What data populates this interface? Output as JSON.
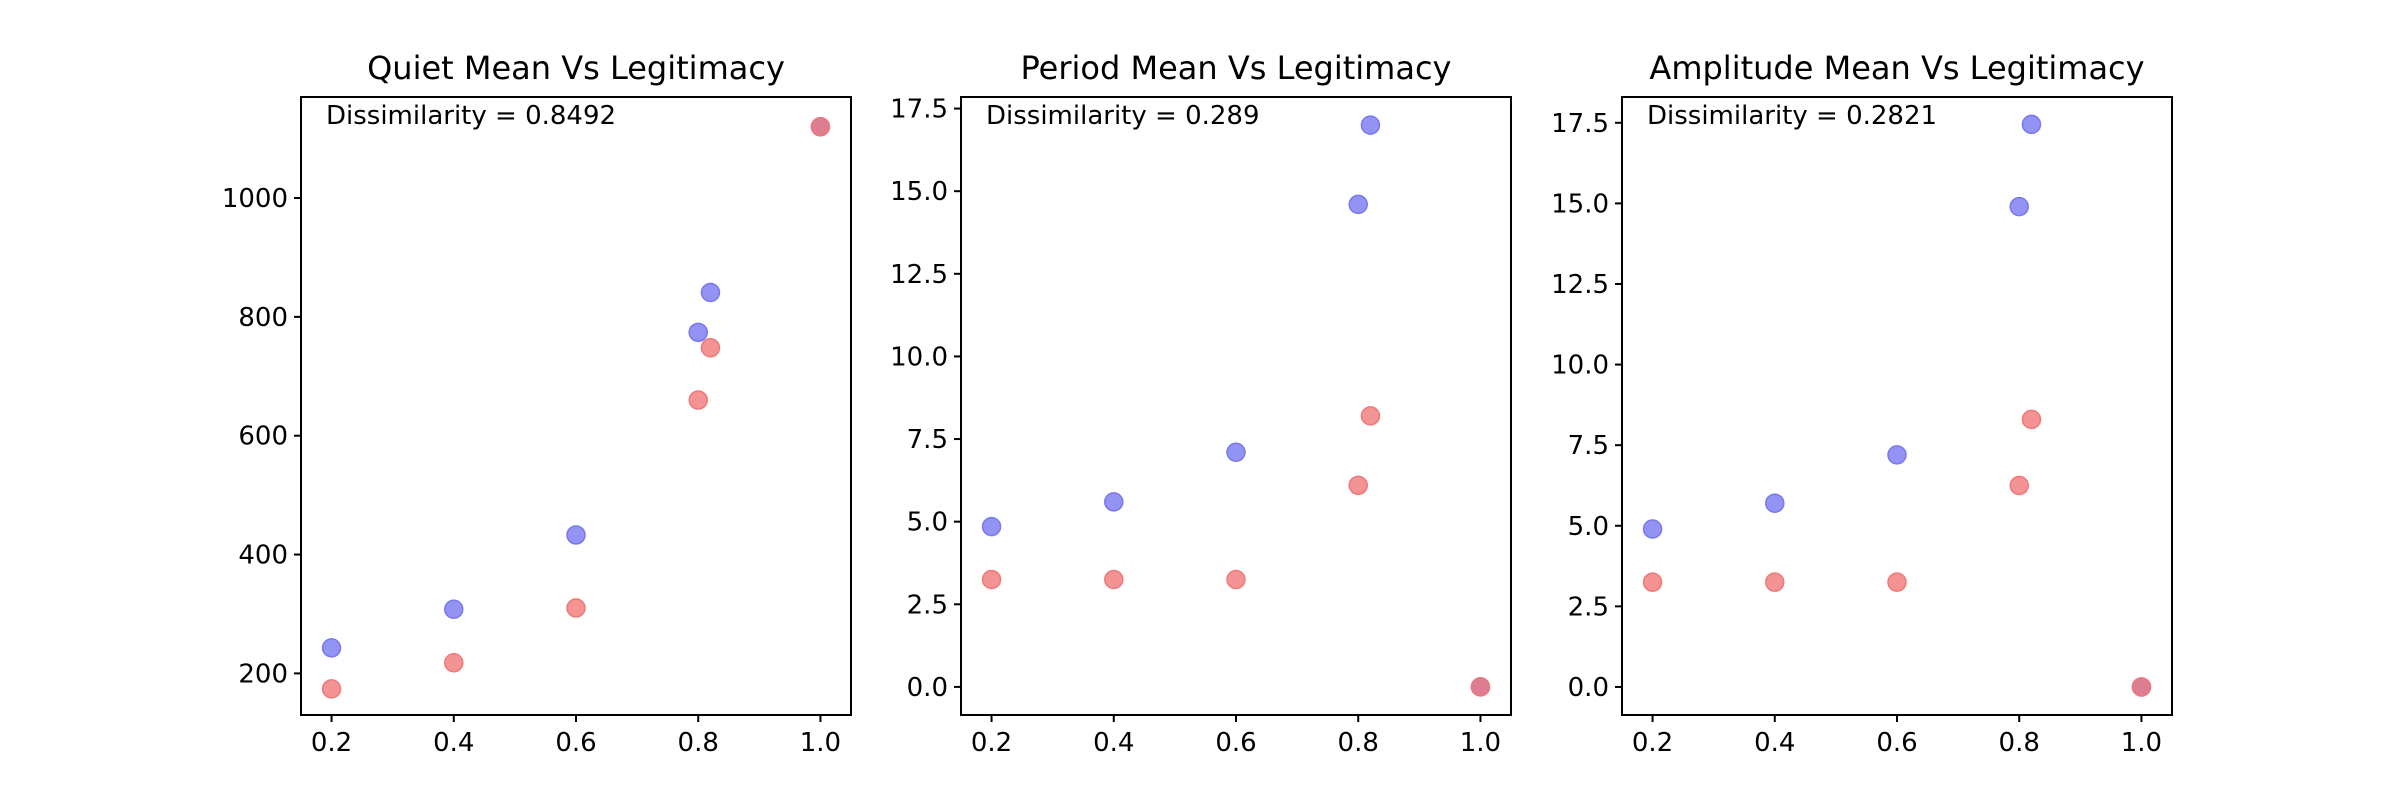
{
  "chart_data": [
    {
      "type": "scatter",
      "title": "Quiet Mean Vs Legitimacy",
      "xlabel": "",
      "ylabel": "",
      "annotation": "Dissimilarity = 0.8492",
      "xlim": [
        0.15,
        1.05
      ],
      "ylim": [
        130,
        1170
      ],
      "xticks": [
        0.2,
        0.4,
        0.6,
        0.8,
        1.0
      ],
      "xtick_labels": [
        "0.2",
        "0.4",
        "0.6",
        "0.8",
        "1.0"
      ],
      "yticks": [
        200,
        400,
        600,
        800,
        1000
      ],
      "ytick_labels": [
        "200",
        "400",
        "600",
        "800",
        "1000"
      ],
      "grid": false,
      "series": [
        {
          "color": "#7878f0",
          "points": [
            [
              0.2,
              243
            ],
            [
              0.4,
              308
            ],
            [
              0.6,
              433
            ],
            [
              0.8,
              774
            ],
            [
              0.82,
              841
            ],
            [
              1.0,
              1120
            ]
          ]
        },
        {
          "color": "#f07878",
          "points": [
            [
              0.2,
              174
            ],
            [
              0.4,
              218
            ],
            [
              0.6,
              310
            ],
            [
              0.8,
              660
            ],
            [
              0.82,
              748
            ],
            [
              1.0,
              1120
            ]
          ]
        }
      ]
    },
    {
      "type": "scatter",
      "title": "Period Mean Vs Legitimacy",
      "xlabel": "",
      "ylabel": "",
      "annotation": "Dissimilarity = 0.289",
      "xlim": [
        0.15,
        1.05
      ],
      "ylim": [
        -0.85,
        17.85
      ],
      "xticks": [
        0.2,
        0.4,
        0.6,
        0.8,
        1.0
      ],
      "xtick_labels": [
        "0.2",
        "0.4",
        "0.6",
        "0.8",
        "1.0"
      ],
      "yticks": [
        0.0,
        2.5,
        5.0,
        7.5,
        10.0,
        12.5,
        15.0,
        17.5
      ],
      "ytick_labels": [
        "0.0",
        "2.5",
        "5.0",
        "7.5",
        "10.0",
        "12.5",
        "15.0",
        "17.5"
      ],
      "grid": false,
      "series": [
        {
          "color": "#7878f0",
          "points": [
            [
              0.2,
              4.85
            ],
            [
              0.4,
              5.6
            ],
            [
              0.6,
              7.1
            ],
            [
              0.8,
              14.6
            ],
            [
              0.82,
              17.0
            ],
            [
              1.0,
              0.0
            ]
          ]
        },
        {
          "color": "#f07878",
          "points": [
            [
              0.2,
              3.25
            ],
            [
              0.4,
              3.25
            ],
            [
              0.6,
              3.25
            ],
            [
              0.8,
              6.1
            ],
            [
              0.82,
              8.2
            ],
            [
              1.0,
              0.0
            ]
          ]
        }
      ]
    },
    {
      "type": "scatter",
      "title": "Amplitude Mean Vs Legitimacy",
      "xlabel": "",
      "ylabel": "",
      "annotation": "Dissimilarity = 0.2821",
      "xlim": [
        0.15,
        1.05
      ],
      "ylim": [
        -0.87,
        18.3
      ],
      "xticks": [
        0.2,
        0.4,
        0.6,
        0.8,
        1.0
      ],
      "xtick_labels": [
        "0.2",
        "0.4",
        "0.6",
        "0.8",
        "1.0"
      ],
      "yticks": [
        0.0,
        2.5,
        5.0,
        7.5,
        10.0,
        12.5,
        15.0,
        17.5
      ],
      "ytick_labels": [
        "0.0",
        "2.5",
        "5.0",
        "7.5",
        "10.0",
        "12.5",
        "15.0",
        "17.5"
      ],
      "grid": false,
      "series": [
        {
          "color": "#7878f0",
          "points": [
            [
              0.2,
              4.9
            ],
            [
              0.4,
              5.7
            ],
            [
              0.6,
              7.2
            ],
            [
              0.8,
              14.9
            ],
            [
              0.82,
              17.45
            ],
            [
              1.0,
              0.0
            ]
          ]
        },
        {
          "color": "#f07878",
          "points": [
            [
              0.2,
              3.25
            ],
            [
              0.4,
              3.25
            ],
            [
              0.6,
              3.25
            ],
            [
              0.8,
              6.25
            ],
            [
              0.82,
              8.3
            ],
            [
              1.0,
              0.0
            ]
          ]
        }
      ]
    }
  ]
}
